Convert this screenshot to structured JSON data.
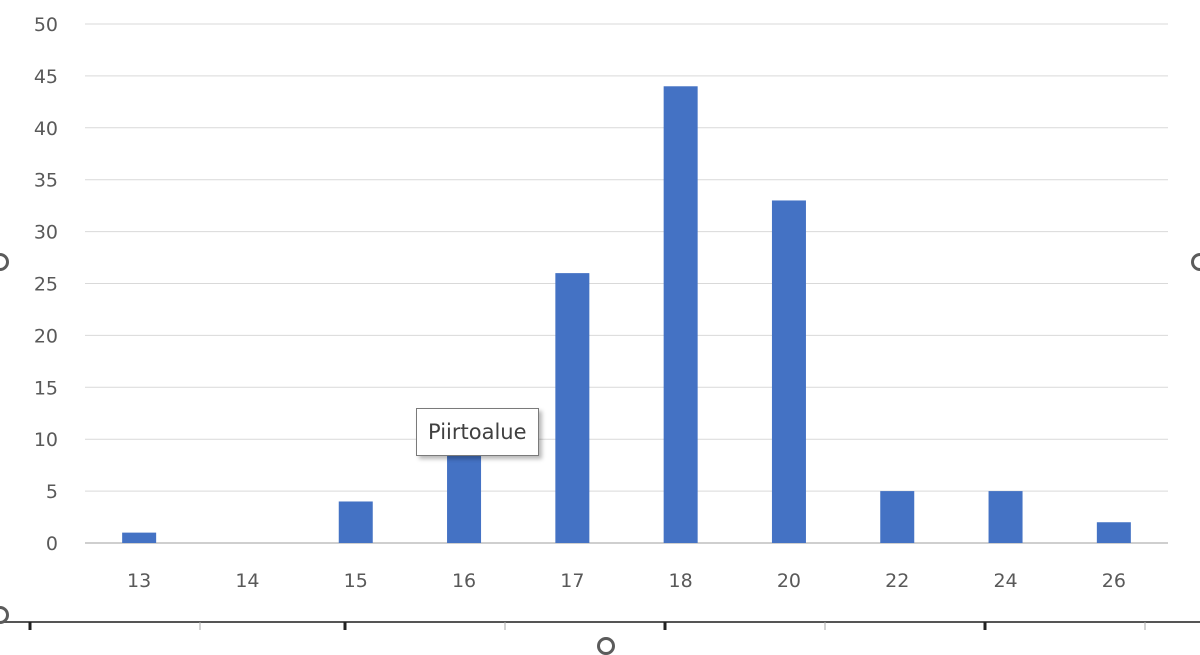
{
  "tooltip": {
    "text": "Piirtoalue"
  },
  "chart_data": {
    "type": "bar",
    "categories": [
      "13",
      "14",
      "15",
      "16",
      "17",
      "18",
      "20",
      "22",
      "24",
      "26"
    ],
    "values": [
      1,
      0,
      4,
      9,
      26,
      44,
      33,
      5,
      5,
      2
    ],
    "title": "",
    "xlabel": "",
    "ylabel": "",
    "ylim": [
      0,
      50
    ],
    "yticks": [
      0,
      5,
      10,
      15,
      20,
      25,
      30,
      35,
      40,
      45,
      50
    ],
    "grid": true,
    "legend": "none",
    "bar_color": "#4472C4"
  }
}
